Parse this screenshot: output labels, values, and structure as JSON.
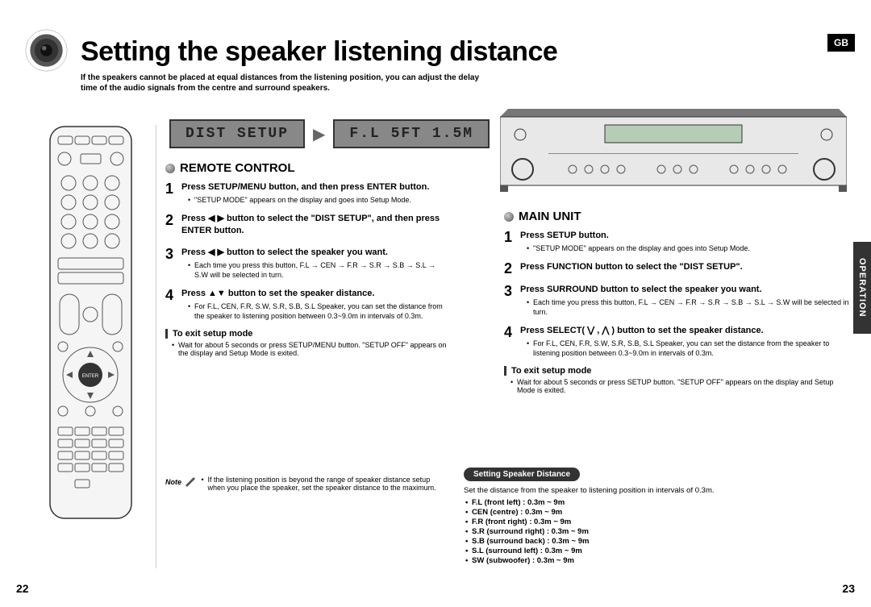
{
  "badge": "GB",
  "side_tab": "OPERATION",
  "title": "Setting the speaker listening distance",
  "subtitle": "If the speakers cannot be placed at equal distances from the listening position, you can adjust the delay time of the audio signals from the centre and surround speakers.",
  "display1": "DIST SETUP",
  "display2": "F.L 5FT 1.5M",
  "remote": {
    "heading": "REMOTE CONTROL",
    "steps": [
      {
        "n": "1",
        "title": "Press SETUP/MENU button, and then press ENTER button.",
        "subs": [
          "\"SETUP MODE\" appears on the display and goes into Setup Mode."
        ]
      },
      {
        "n": "2",
        "title": "Press ◀ ▶ button to select the \"DIST SETUP\", and then press ENTER button.",
        "subs": []
      },
      {
        "n": "3",
        "title": "Press ◀ ▶ button to select the speaker you want.",
        "subs": [
          "Each time you press this button, F.L → CEN → F.R → S.R → S.B → S.L → S.W will be selected in turn."
        ]
      },
      {
        "n": "4",
        "title": "Press ▲▼ button to set the speaker distance.",
        "subs": [
          "For F.L, CEN, F.R, S.W, S.R, S.B, S.L Speaker, you can set the distance from the speaker to listening position between 0.3~9.0m in intervals of 0.3m."
        ]
      }
    ],
    "exit_head": "To exit setup mode",
    "exit_subs": [
      "Wait for about 5 seconds or press SETUP/MENU button. \"SETUP OFF\" appears on the display and Setup Mode is exited."
    ]
  },
  "main": {
    "heading": "MAIN UNIT",
    "steps": [
      {
        "n": "1",
        "title": "Press SETUP button.",
        "subs": [
          "\"SETUP MODE\" appears on the display and goes into Setup Mode."
        ]
      },
      {
        "n": "2",
        "title": "Press FUNCTION button to select the \"DIST SETUP\".",
        "subs": []
      },
      {
        "n": "3",
        "title": "Press SURROUND button to select the speaker you want.",
        "subs": [
          "Each time you press this button, F.L → CEN → F.R → S.R → S.B → S.L → S.W will be selected in turn."
        ]
      },
      {
        "n": "4",
        "title": "Press SELECT( ⋁ , ⋀ ) button to set the speaker distance.",
        "subs": [
          "For F.L, CEN, F.R, S.W, S.R, S.B, S.L Speaker, you can set the distance from the speaker to listening position between 0.3~9.0m in intervals of 0.3m."
        ]
      }
    ],
    "exit_head": "To exit setup mode",
    "exit_subs": [
      "Wait for about 5 seconds or press SETUP button. \"SETUP OFF\" appears on the display and Setup Mode is exited."
    ]
  },
  "note": {
    "label": "Note",
    "items": [
      "If the listening position is beyond the range of speaker distance setup when you place the speaker, set the speaker distance to the maximum."
    ]
  },
  "dist": {
    "pill": "Setting Speaker Distance",
    "intro": "Set the distance from the speaker to listening position in intervals of 0.3m.",
    "items": [
      "F.L (front left) : 0.3m ~ 9m",
      "CEN (centre) : 0.3m ~ 9m",
      "F.R (front right) : 0.3m ~ 9m",
      "S.R (surround right) : 0.3m ~ 9m",
      "S.B (surround back) : 0.3m ~ 9m",
      "S.L (surround left) : 0.3m ~ 9m",
      "SW (subwoofer) : 0.3m ~ 9m"
    ]
  },
  "page_left": "22",
  "page_right": "23"
}
